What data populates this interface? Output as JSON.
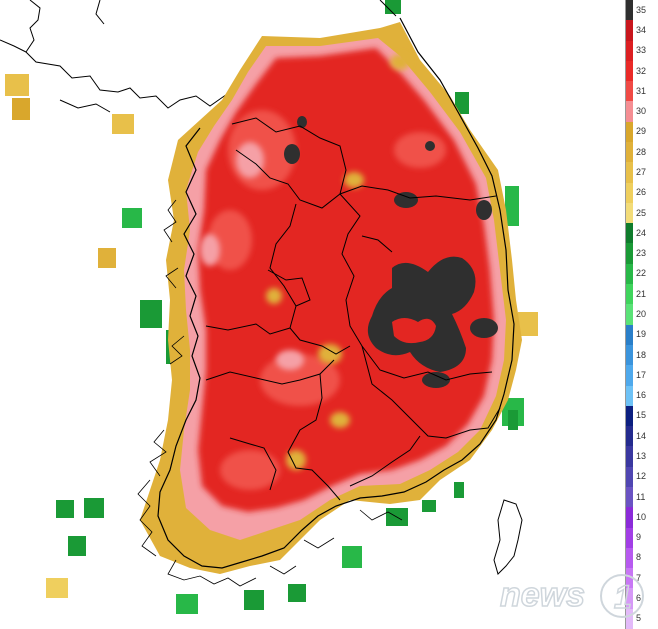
{
  "legend": {
    "labels": [
      "35",
      "34",
      "33",
      "32",
      "31",
      "30",
      "29",
      "28",
      "27",
      "26",
      "25",
      "24",
      "23",
      "22",
      "21",
      "20",
      "19",
      "18",
      "17",
      "16",
      "15",
      "14",
      "13",
      "12",
      "11",
      "10",
      "9",
      "8",
      "7",
      "6",
      "5"
    ],
    "colors": [
      "#2f2f2f",
      "#c8161d",
      "#dc1f22",
      "#ea2a28",
      "#f04a45",
      "#f58e93",
      "#d9a72c",
      "#e0b13a",
      "#e8c04a",
      "#efcf5e",
      "#f3dc79",
      "#0f7c2c",
      "#1a9a36",
      "#28b848",
      "#3fd45c",
      "#5ae277",
      "#2a7fc9",
      "#3b94dc",
      "#4fa9ec",
      "#6ec2f6",
      "#0c1f80",
      "#242b8e",
      "#3a38a0",
      "#5046b2",
      "#6a53c3",
      "#8b2bd9",
      "#a23ee6",
      "#b75af0",
      "#c877f5",
      "#d699f7",
      "#e3baf9"
    ]
  },
  "map_colors": {
    "hot_core": "#2f2f2f",
    "very_hot": "#e32622",
    "hot": "#f0514a",
    "warm_pink": "#f5a0a6",
    "mild": "#dfb43b",
    "mild_light": "#f0d46a",
    "cool": "#1f9c3a",
    "cool_light": "#4fd16b",
    "border": "#000000"
  },
  "watermark": {
    "text": "news",
    "mark": "1"
  }
}
